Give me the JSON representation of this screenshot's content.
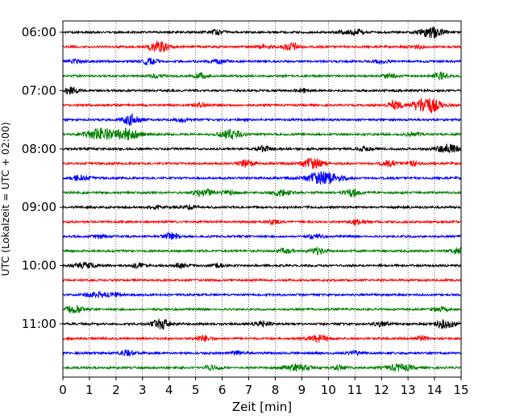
{
  "chart_data": {
    "type": "line",
    "xlabel": "Zeit  [min]",
    "ylabel": "UTC (Lokalzeit = UTC + 02:00)",
    "xlim": [
      0,
      15
    ],
    "x_ticks": [
      0,
      1,
      2,
      3,
      4,
      5,
      6,
      7,
      8,
      9,
      10,
      11,
      12,
      13,
      14,
      15
    ],
    "y_ticks": [
      "06:00",
      "07:00",
      "08:00",
      "09:00",
      "10:00",
      "11:00"
    ],
    "grid": "vertical dotted at each minute",
    "trace_colors": [
      "#000000",
      "#ff0000",
      "#0000ff",
      "#008000"
    ],
    "traces": [
      {
        "start": "06:00",
        "events": [
          [
            13.9,
            1.6,
            0.3
          ],
          [
            11.1,
            0.8,
            0.2
          ],
          [
            5.8,
            0.6,
            0.2
          ],
          [
            10.6,
            0.5,
            0.2
          ]
        ]
      },
      {
        "start": "06:15",
        "events": [
          [
            3.6,
            1.4,
            0.3
          ],
          [
            8.6,
            1.2,
            0.2
          ],
          [
            7.6,
            0.5,
            0.2
          ],
          [
            13.3,
            0.5,
            0.2
          ]
        ]
      },
      {
        "start": "06:30",
        "events": [
          [
            3.3,
            1.0,
            0.2
          ],
          [
            0.5,
            0.6,
            0.2
          ],
          [
            5.9,
            0.5,
            0.2
          ],
          [
            12.0,
            0.5,
            0.2
          ]
        ]
      },
      {
        "start": "06:45",
        "events": [
          [
            14.2,
            1.0,
            0.2
          ],
          [
            5.2,
            0.8,
            0.2
          ],
          [
            12.3,
            0.6,
            0.2
          ],
          [
            3.5,
            0.5,
            0.2
          ]
        ]
      },
      {
        "start": "07:00",
        "events": [
          [
            0.3,
            1.0,
            0.2
          ],
          [
            9.1,
            0.5,
            0.2
          ]
        ]
      },
      {
        "start": "07:15",
        "events": [
          [
            13.7,
            2.6,
            0.35
          ],
          [
            12.5,
            1.2,
            0.2
          ],
          [
            5.2,
            0.6,
            0.2
          ]
        ]
      },
      {
        "start": "07:30",
        "events": [
          [
            2.6,
            1.6,
            0.25
          ],
          [
            4.5,
            0.5,
            0.2
          ]
        ]
      },
      {
        "start": "07:45",
        "events": [
          [
            1.4,
            1.8,
            0.35
          ],
          [
            2.4,
            1.6,
            0.35
          ],
          [
            6.3,
            1.4,
            0.3
          ],
          [
            13.2,
            0.6,
            0.2
          ]
        ]
      },
      {
        "start": "08:00",
        "events": [
          [
            14.5,
            1.4,
            0.3
          ],
          [
            7.6,
            0.8,
            0.2
          ],
          [
            11.4,
            0.6,
            0.2
          ]
        ]
      },
      {
        "start": "08:15",
        "events": [
          [
            9.4,
            1.6,
            0.3
          ],
          [
            6.9,
            1.0,
            0.2
          ],
          [
            12.3,
            0.8,
            0.2
          ],
          [
            13.2,
            0.6,
            0.2
          ]
        ]
      },
      {
        "start": "08:30",
        "events": [
          [
            9.8,
            2.0,
            0.45
          ],
          [
            0.7,
            0.8,
            0.25
          ]
        ]
      },
      {
        "start": "08:45",
        "events": [
          [
            5.3,
            1.2,
            0.25
          ],
          [
            8.2,
            1.0,
            0.25
          ],
          [
            10.9,
            1.0,
            0.2
          ],
          [
            6.2,
            0.6,
            0.2
          ]
        ]
      },
      {
        "start": "09:00",
        "events": [
          [
            4.8,
            0.6,
            0.2
          ],
          [
            3.5,
            0.5,
            0.2
          ]
        ]
      },
      {
        "start": "09:15",
        "events": [
          [
            11.1,
            0.8,
            0.2
          ],
          [
            7.9,
            0.5,
            0.2
          ]
        ]
      },
      {
        "start": "09:30",
        "events": [
          [
            4.1,
            1.0,
            0.2
          ],
          [
            1.4,
            0.5,
            0.2
          ],
          [
            9.5,
            0.5,
            0.2
          ]
        ]
      },
      {
        "start": "09:45",
        "events": [
          [
            9.6,
            1.0,
            0.2
          ],
          [
            14.9,
            1.0,
            0.2
          ],
          [
            8.4,
            0.6,
            0.2
          ]
        ]
      },
      {
        "start": "10:00",
        "events": [
          [
            0.8,
            0.8,
            0.3
          ],
          [
            2.8,
            0.6,
            0.2
          ],
          [
            4.4,
            0.6,
            0.2
          ],
          [
            5.8,
            0.5,
            0.2
          ]
        ]
      },
      {
        "start": "10:15",
        "events": []
      },
      {
        "start": "10:30",
        "events": [
          [
            1.3,
            0.8,
            0.3
          ],
          [
            2.0,
            0.6,
            0.2
          ]
        ]
      },
      {
        "start": "10:45",
        "events": [
          [
            0.4,
            1.0,
            0.25
          ],
          [
            14.2,
            0.6,
            0.2
          ]
        ]
      },
      {
        "start": "11:00",
        "events": [
          [
            3.7,
            1.4,
            0.25
          ],
          [
            14.4,
            1.2,
            0.3
          ],
          [
            7.5,
            0.8,
            0.2
          ],
          [
            12.0,
            0.6,
            0.2
          ]
        ]
      },
      {
        "start": "11:15",
        "events": [
          [
            9.6,
            1.0,
            0.25
          ],
          [
            5.3,
            0.8,
            0.2
          ],
          [
            13.5,
            0.6,
            0.2
          ]
        ]
      },
      {
        "start": "11:30",
        "events": [
          [
            2.4,
            0.8,
            0.2
          ],
          [
            6.6,
            0.5,
            0.2
          ],
          [
            11.0,
            0.5,
            0.2
          ]
        ]
      },
      {
        "start": "11:45",
        "events": [
          [
            8.8,
            1.0,
            0.35
          ],
          [
            12.7,
            1.0,
            0.35
          ],
          [
            5.6,
            0.6,
            0.2
          ],
          [
            10.4,
            0.6,
            0.2
          ]
        ]
      }
    ]
  }
}
